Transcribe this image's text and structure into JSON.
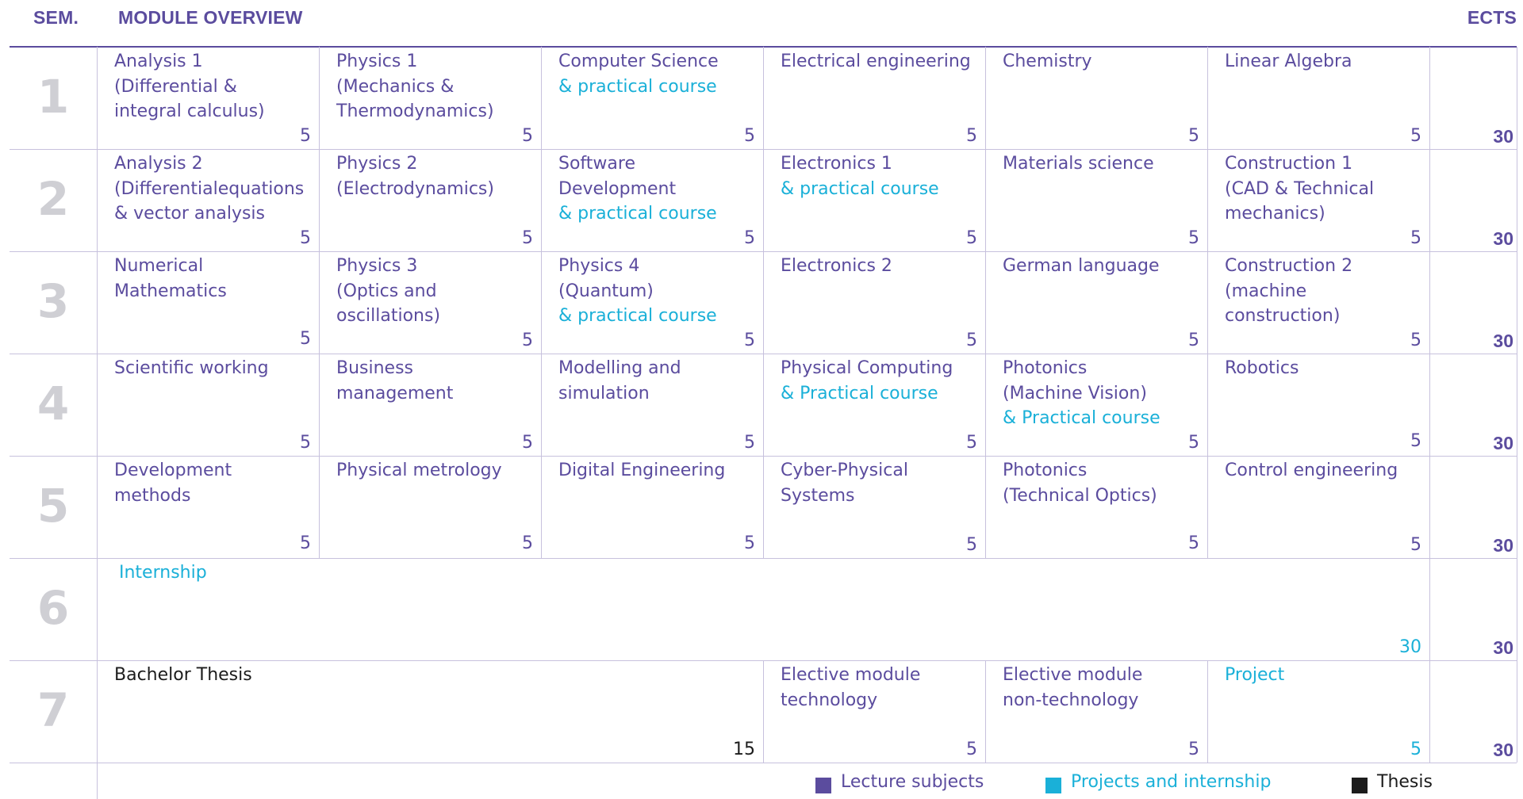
{
  "header": {
    "semester_label": "SEM.",
    "overview_label": "MODULE OVERVIEW",
    "ects_label": "ECTS"
  },
  "colors": {
    "lecture": "#5b4c9e",
    "project": "#1ab0d8",
    "thesis": "#1c1c1c",
    "semester_number": "#cfcfd4",
    "grid_line": "#c7c1dd"
  },
  "semesters": [
    {
      "number": "1",
      "total": "30",
      "modules": [
        {
          "col": 0,
          "span": 1,
          "lines": [
            {
              "text": "Analysis 1\n(Differential &\nintegral calculus)",
              "type": "lecture"
            }
          ],
          "ects": "5",
          "ects_type": "lecture"
        },
        {
          "col": 1,
          "span": 1,
          "lines": [
            {
              "text": "Physics 1\n(Mechanics &\nThermodynamics)",
              "type": "lecture"
            }
          ],
          "ects": "5",
          "ects_type": "lecture"
        },
        {
          "col": 2,
          "span": 1,
          "lines": [
            {
              "text": "Computer Science",
              "type": "lecture"
            },
            {
              "text": "& practical course",
              "type": "project"
            }
          ],
          "ects": "5",
          "ects_type": "lecture"
        },
        {
          "col": 3,
          "span": 1,
          "lines": [
            {
              "text": "Electrical engineering",
              "type": "lecture"
            }
          ],
          "ects": "5",
          "ects_type": "lecture"
        },
        {
          "col": 4,
          "span": 1,
          "lines": [
            {
              "text": "Chemistry",
              "type": "lecture"
            }
          ],
          "ects": "5",
          "ects_type": "lecture"
        },
        {
          "col": 5,
          "span": 1,
          "lines": [
            {
              "text": "Linear Algebra",
              "type": "lecture"
            }
          ],
          "ects": "5",
          "ects_type": "lecture"
        }
      ]
    },
    {
      "number": "2",
      "total": "30",
      "modules": [
        {
          "col": 0,
          "span": 1,
          "lines": [
            {
              "text": "Analysis 2\n(Differentialequations\n& vector analysis",
              "type": "lecture"
            }
          ],
          "ects": "5",
          "ects_type": "lecture"
        },
        {
          "col": 1,
          "span": 1,
          "lines": [
            {
              "text": "Physics 2\n(Electrodynamics)",
              "type": "lecture"
            }
          ],
          "ects": "5",
          "ects_type": "lecture"
        },
        {
          "col": 2,
          "span": 1,
          "lines": [
            {
              "text": "Software Development",
              "type": "lecture"
            },
            {
              "text": "& practical course",
              "type": "project"
            }
          ],
          "ects": "5",
          "ects_type": "lecture"
        },
        {
          "col": 3,
          "span": 1,
          "lines": [
            {
              "text": "Electronics 1",
              "type": "lecture"
            },
            {
              "text": "& practical course",
              "type": "project"
            }
          ],
          "ects": "5",
          "ects_type": "lecture"
        },
        {
          "col": 4,
          "span": 1,
          "lines": [
            {
              "text": "Materials science",
              "type": "lecture"
            }
          ],
          "ects": "5",
          "ects_type": "lecture"
        },
        {
          "col": 5,
          "span": 1,
          "lines": [
            {
              "text": "Construction 1\n(CAD & Technical\nmechanics)",
              "type": "lecture"
            }
          ],
          "ects": "5",
          "ects_type": "lecture"
        }
      ]
    },
    {
      "number": "3",
      "total": "30",
      "modules": [
        {
          "col": 0,
          "span": 1,
          "lines": [
            {
              "text": "Numerical Mathematics",
              "type": "lecture"
            }
          ],
          "ects": "5",
          "ects_type": "lecture",
          "ects_line": 3
        },
        {
          "col": 1,
          "span": 1,
          "lines": [
            {
              "text": "Physics 3\n(Optics and oscillations)",
              "type": "lecture"
            }
          ],
          "ects": "5",
          "ects_type": "lecture"
        },
        {
          "col": 2,
          "span": 1,
          "lines": [
            {
              "text": "Physics 4\n(Quantum)",
              "type": "lecture"
            },
            {
              "text": "& practical course",
              "type": "project"
            }
          ],
          "ects": "5",
          "ects_type": "lecture"
        },
        {
          "col": 3,
          "span": 1,
          "lines": [
            {
              "text": "Electronics  2",
              "type": "lecture"
            }
          ],
          "ects": "5",
          "ects_type": "lecture"
        },
        {
          "col": 4,
          "span": 1,
          "lines": [
            {
              "text": "German language",
              "type": "lecture"
            }
          ],
          "ects": "5",
          "ects_type": "lecture"
        },
        {
          "col": 5,
          "span": 1,
          "lines": [
            {
              "text": "Construction 2\n(machine construction)",
              "type": "lecture"
            }
          ],
          "ects": "5",
          "ects_type": "lecture"
        }
      ]
    },
    {
      "number": "4",
      "total": "30",
      "modules": [
        {
          "col": 0,
          "span": 1,
          "lines": [
            {
              "text": "Scientific working",
              "type": "lecture"
            }
          ],
          "ects": "5",
          "ects_type": "lecture"
        },
        {
          "col": 1,
          "span": 1,
          "lines": [
            {
              "text": "Business\nmanagement",
              "type": "lecture"
            }
          ],
          "ects": "5",
          "ects_type": "lecture"
        },
        {
          "col": 2,
          "span": 1,
          "lines": [
            {
              "text": "Modelling and\nsimulation",
              "type": "lecture"
            }
          ],
          "ects": "5",
          "ects_type": "lecture"
        },
        {
          "col": 3,
          "span": 1,
          "lines": [
            {
              "text": "Physical Computing",
              "type": "lecture"
            },
            {
              "text": "& Practical course",
              "type": "project"
            }
          ],
          "ects": "5",
          "ects_type": "lecture"
        },
        {
          "col": 4,
          "span": 1,
          "lines": [
            {
              "text": "Photonics\n(Machine Vision)",
              "type": "lecture"
            },
            {
              "text": "& Practical course",
              "type": "project"
            }
          ],
          "ects": "5",
          "ects_type": "lecture"
        },
        {
          "col": 5,
          "span": 1,
          "lines": [
            {
              "text": "Robotics",
              "type": "lecture"
            }
          ],
          "ects": "5",
          "ects_type": "lecture",
          "ects_line": 3
        }
      ]
    },
    {
      "number": "5",
      "total": "30",
      "modules": [
        {
          "col": 0,
          "span": 1,
          "lines": [
            {
              "text": "Development methods",
              "type": "lecture"
            }
          ],
          "ects": "5",
          "ects_type": "lecture",
          "ects_line": 3
        },
        {
          "col": 1,
          "span": 1,
          "lines": [
            {
              "text": "Physical metrology",
              "type": "lecture"
            }
          ],
          "ects": "5",
          "ects_type": "lecture",
          "ects_line": 3
        },
        {
          "col": 2,
          "span": 1,
          "lines": [
            {
              "text": "Digital Engineering",
              "type": "lecture"
            }
          ],
          "ects": "5",
          "ects_type": "lecture",
          "ects_line": 3
        },
        {
          "col": 3,
          "span": 1,
          "lines": [
            {
              "text": "Cyber-Physical\nSystems",
              "type": "lecture"
            }
          ],
          "ects": "5",
          "ects_type": "lecture"
        },
        {
          "col": 4,
          "span": 1,
          "lines": [
            {
              "text": "Photonics\n(Technical Optics)",
              "type": "lecture"
            }
          ],
          "ects": "5",
          "ects_type": "lecture",
          "ects_line": 3
        },
        {
          "col": 5,
          "span": 1,
          "lines": [
            {
              "text": "Control engineering",
              "type": "lecture"
            }
          ],
          "ects": "5",
          "ects_type": "lecture"
        }
      ]
    },
    {
      "number": "6",
      "total": "30",
      "modules": [
        {
          "col": 0,
          "span": 6,
          "lines": [
            {
              "text": "Internship",
              "type": "project"
            }
          ],
          "ects": "30",
          "ects_type": "project",
          "indent": 6
        }
      ]
    },
    {
      "number": "7",
      "total": "30",
      "modules": [
        {
          "col": 0,
          "span": 3,
          "lines": [
            {
              "text": "Bachelor Thesis",
              "type": "thesis"
            }
          ],
          "ects": "15",
          "ects_type": "thesis"
        },
        {
          "col": 3,
          "span": 1,
          "lines": [
            {
              "text": "Elective module\ntechnology",
              "type": "lecture"
            }
          ],
          "ects": "5",
          "ects_type": "lecture"
        },
        {
          "col": 4,
          "span": 1,
          "lines": [
            {
              "text": "Elective module\nnon-technology",
              "type": "lecture"
            }
          ],
          "ects": "5",
          "ects_type": "lecture"
        },
        {
          "col": 5,
          "span": 1,
          "lines": [
            {
              "text": "Project",
              "type": "project"
            }
          ],
          "ects": "5",
          "ects_type": "project"
        }
      ]
    }
  ],
  "legend": [
    {
      "label": "Lecture subjects",
      "type": "lecture"
    },
    {
      "label": "Projects and internship",
      "type": "project"
    },
    {
      "label": "Thesis",
      "type": "thesis"
    }
  ]
}
